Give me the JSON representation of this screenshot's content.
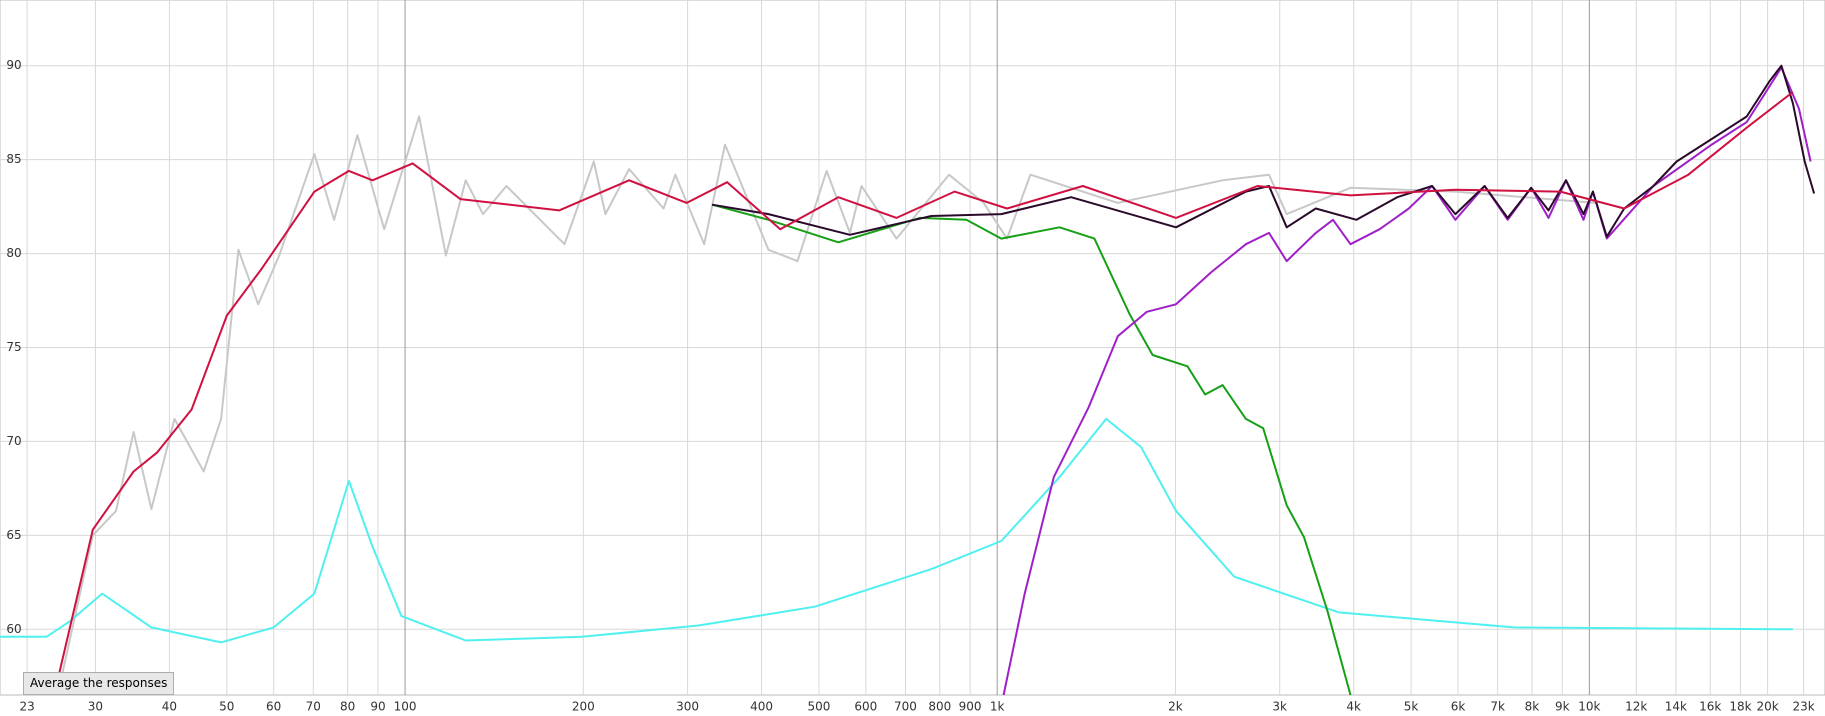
{
  "chart_data": {
    "type": "line",
    "xscale": "log",
    "xlim": [
      20.7,
      25000
    ],
    "ylim": [
      56.5,
      93.5
    ],
    "xticks": [
      23,
      30,
      40,
      50,
      60,
      70,
      80,
      90,
      100,
      200,
      300,
      400,
      500,
      600,
      700,
      800,
      900,
      {
        "value": 1000,
        "label": "1k"
      },
      {
        "value": 2000,
        "label": "2k"
      },
      {
        "value": 3000,
        "label": "3k"
      },
      {
        "value": 4000,
        "label": "4k"
      },
      {
        "value": 5000,
        "label": "5k"
      },
      {
        "value": 6000,
        "label": "6k"
      },
      {
        "value": 7000,
        "label": "7k"
      },
      {
        "value": 8000,
        "label": "8k"
      },
      {
        "value": 9000,
        "label": "9k"
      },
      {
        "value": 10000,
        "label": "10k"
      },
      {
        "value": 12000,
        "label": "12k"
      },
      {
        "value": 14000,
        "label": "14k"
      },
      {
        "value": 16000,
        "label": "16k"
      },
      {
        "value": 18000,
        "label": "18k"
      },
      {
        "value": 20000,
        "label": "20k"
      },
      {
        "value": 23000,
        "label": "23k"
      }
    ],
    "yticks": [
      60,
      65,
      70,
      75,
      80,
      85,
      90
    ],
    "grid": true,
    "button": "Average the responses",
    "series": [
      {
        "color": "#c8c8c8",
        "x": [
          25.9,
          29.7,
          32.5,
          34.8,
          37.3,
          40.8,
          45.7,
          48.9,
          52.3,
          56.5,
          61.3,
          70.3,
          75.9,
          83.1,
          92.2,
          105.6,
          117.2,
          126.6,
          135.4,
          148.3,
          185.9,
          208.3,
          217.9,
          239,
          273.3,
          286,
          320,
          347,
          411,
          460,
          515,
          564,
          590,
          676,
          829,
          949,
          1039,
          1138,
          1598,
          2402,
          2877,
          3082,
          3950,
          5940,
          10230
        ],
        "values": [
          56.5,
          65,
          66.3,
          70.5,
          66.4,
          71.2,
          68.4,
          71.2,
          80.2,
          77.3,
          79.9,
          85.3,
          81.8,
          86.3,
          81.3,
          87.3,
          79.9,
          83.9,
          82.1,
          83.6,
          80.5,
          84.9,
          82.1,
          84.5,
          82.4,
          84.2,
          80.5,
          85.8,
          80.2,
          79.6,
          84.4,
          81.1,
          83.6,
          80.8,
          84.2,
          82.7,
          80.8,
          84.2,
          82.7,
          83.9,
          84.2,
          82.1,
          83.5,
          83.3,
          82.7
        ]
      },
      {
        "color": "#50f0f0",
        "x": [
          20.7,
          24.8,
          27.1,
          30.8,
          37.3,
          48.9,
          60,
          70.3,
          80.4,
          88.1,
          98.6,
          126.6,
          199,
          313,
          492,
          774,
          1016,
          1274,
          1528,
          1750,
          2004,
          2513,
          3777,
          7450,
          22070
        ],
        "values": [
          59.6,
          59.6,
          60.4,
          61.9,
          60.1,
          59.3,
          60.1,
          61.9,
          67.9,
          64.4,
          60.7,
          59.4,
          59.6,
          60.2,
          61.2,
          63.2,
          64.7,
          68.1,
          71.2,
          69.7,
          66.3,
          62.8,
          60.9,
          60.1,
          60.0
        ]
      },
      {
        "color": "#16a016",
        "x": [
          330,
          411,
          539,
          740,
          887,
          1016,
          1274,
          1459,
          1672,
          1830,
          2096,
          2244,
          2402,
          2630,
          2813,
          3082,
          3297,
          3610,
          3950
        ],
        "values": [
          82.6,
          81.8,
          80.6,
          81.9,
          81.8,
          80.8,
          81.4,
          80.8,
          76.8,
          74.6,
          74.0,
          72.5,
          73.0,
          71.2,
          70.7,
          66.6,
          64.9,
          61.0,
          56.5
        ]
      },
      {
        "color": "#a020c8",
        "x": [
          1025,
          1113,
          1246,
          1426,
          1598,
          1789,
          2004,
          2296,
          2630,
          2877,
          3082,
          3451,
          3690,
          3950,
          4426,
          4955,
          5425,
          5940,
          6654,
          7280,
          7976,
          8530,
          9130,
          9776,
          10140,
          10700,
          12830,
          16090,
          18440,
          21100,
          22600,
          23640
        ],
        "values": [
          56.5,
          61.9,
          68.1,
          71.8,
          75.6,
          76.9,
          77.3,
          79.0,
          80.5,
          81.1,
          79.6,
          81.1,
          81.8,
          80.5,
          81.3,
          82.4,
          83.6,
          81.8,
          83.6,
          81.8,
          83.5,
          81.9,
          83.9,
          81.8,
          83.3,
          80.8,
          83.6,
          85.8,
          87.0,
          89.9,
          87.7,
          84.9
        ]
      },
      {
        "color": "#2a0a2a",
        "x": [
          330,
          411,
          564,
          774,
          1016,
          1333,
          2004,
          2630,
          2877,
          3082,
          3451,
          4044,
          4737,
          5425,
          5940,
          6654,
          7280,
          7976,
          8530,
          9130,
          9776,
          10140,
          10700,
          11450,
          12830,
          14040,
          16090,
          18440,
          20170,
          21100,
          22070,
          23100,
          23960
        ],
        "values": [
          82.6,
          82.1,
          81.0,
          82.0,
          82.1,
          83.0,
          81.4,
          83.3,
          83.6,
          81.4,
          82.4,
          81.8,
          83.0,
          83.6,
          82.1,
          83.6,
          81.9,
          83.5,
          82.3,
          83.9,
          82.1,
          83.3,
          80.9,
          82.4,
          83.6,
          84.9,
          86.1,
          87.3,
          89.2,
          90.0,
          88.0,
          84.9,
          83.2
        ]
      },
      {
        "color": "#d01040",
        "x": [
          25.6,
          29.7,
          34.8,
          38.1,
          43.6,
          50,
          57.3,
          70.3,
          80.4,
          88.1,
          103,
          124,
          182,
          239,
          299,
          350,
          430,
          539,
          676,
          847,
          1039,
          1395,
          2004,
          2750,
          3950,
          5940,
          8930,
          11450,
          14690,
          18440,
          22070
        ],
        "values": [
          56.6,
          65.3,
          68.4,
          69.4,
          71.7,
          76.7,
          79.2,
          83.3,
          84.4,
          83.9,
          84.8,
          82.9,
          82.3,
          83.9,
          82.7,
          83.8,
          81.3,
          83.0,
          81.9,
          83.3,
          82.4,
          83.6,
          81.9,
          83.6,
          83.1,
          83.4,
          83.3,
          82.4,
          84.2,
          86.7,
          88.6
        ]
      }
    ]
  }
}
